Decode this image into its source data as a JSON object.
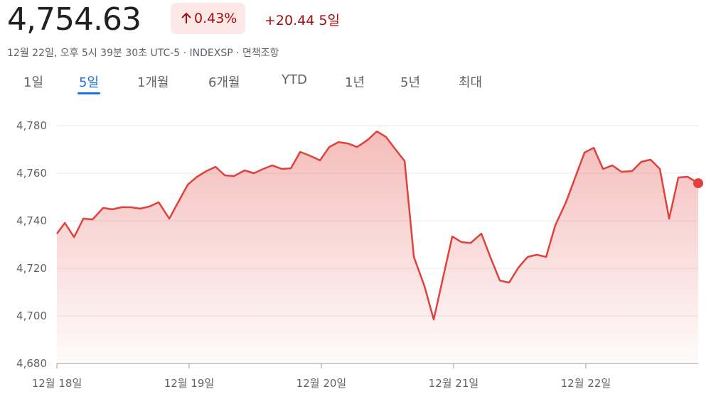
{
  "header": {
    "price": "4,754.63",
    "change_percent": "0.43%",
    "change_value": "+20.44",
    "change_period": "5일",
    "meta": "12월 22일, 오후 5시 39분 30초 UTC-5 · INDEXSP · 면책조항"
  },
  "tabs": [
    "1일",
    "5일",
    "1개월",
    "6개월",
    "YTD",
    "1년",
    "5년",
    "최대"
  ],
  "selected_tab": 1,
  "chart_data": {
    "type": "line",
    "grid": true,
    "xlim": [
      0,
      4.85
    ],
    "xticks": [
      {
        "value": 0,
        "label": "12월 18일"
      },
      {
        "value": 1,
        "label": "12월 19일"
      },
      {
        "value": 2,
        "label": "12월 20일"
      },
      {
        "value": 3,
        "label": "12월 21일"
      },
      {
        "value": 4,
        "label": "12월 22일"
      }
    ],
    "ylim": [
      4680,
      4790
    ],
    "yticks": [
      {
        "value": 4680,
        "label": "4,680"
      },
      {
        "value": 4700,
        "label": "4,700"
      },
      {
        "value": 4720,
        "label": "4,720"
      },
      {
        "value": 4740,
        "label": "4,740"
      },
      {
        "value": 4760,
        "label": "4,760"
      },
      {
        "value": 4780,
        "label": "4,780"
      }
    ],
    "x": [
      0,
      0.06,
      0.13,
      0.2,
      0.27,
      0.35,
      0.42,
      0.49,
      0.56,
      0.63,
      0.7,
      0.77,
      0.85,
      0.92,
      0.99,
      1.06,
      1.13,
      1.2,
      1.27,
      1.34,
      1.42,
      1.49,
      1.56,
      1.63,
      1.7,
      1.77,
      1.84,
      1.92,
      1.99,
      2.06,
      2.13,
      2.2,
      2.27,
      2.35,
      2.42,
      2.49,
      2.56,
      2.63,
      2.7,
      2.78,
      2.85,
      2.92,
      2.99,
      3.06,
      3.13,
      3.21,
      3.28,
      3.35,
      3.42,
      3.49,
      3.56,
      3.63,
      3.7,
      3.77,
      3.85,
      3.92,
      3.99,
      4.06,
      4.13,
      4.2,
      4.27,
      4.35,
      4.42,
      4.49,
      4.56,
      4.63,
      4.7,
      4.77,
      4.85
    ],
    "series": [
      {
        "color": "#e0413b",
        "values": [
          4734.6,
          4739.1,
          4733.1,
          4740.9,
          4740.6,
          4745.4,
          4744.8,
          4745.7,
          4745.7,
          4745.1,
          4746.0,
          4747.8,
          4740.9,
          4748.1,
          4755.2,
          4758.5,
          4760.9,
          4762.7,
          4759.1,
          4758.8,
          4761.2,
          4760.0,
          4761.8,
          4763.3,
          4761.8,
          4762.1,
          4769.0,
          4767.2,
          4765.4,
          4771.0,
          4773.1,
          4772.5,
          4771.0,
          4774.0,
          4777.6,
          4775.2,
          4770.1,
          4765.1,
          4724.8,
          4712.5,
          4698.5,
          4716.1,
          4733.4,
          4731.0,
          4730.7,
          4734.6,
          4724.5,
          4714.9,
          4714.0,
          4720.3,
          4724.8,
          4725.7,
          4724.8,
          4738.2,
          4747.8,
          4758.2,
          4768.7,
          4770.7,
          4761.8,
          4763.3,
          4760.6,
          4760.9,
          4764.8,
          4765.7,
          4761.8,
          4740.9,
          4758.2,
          4758.5,
          4755.8
        ]
      }
    ]
  }
}
